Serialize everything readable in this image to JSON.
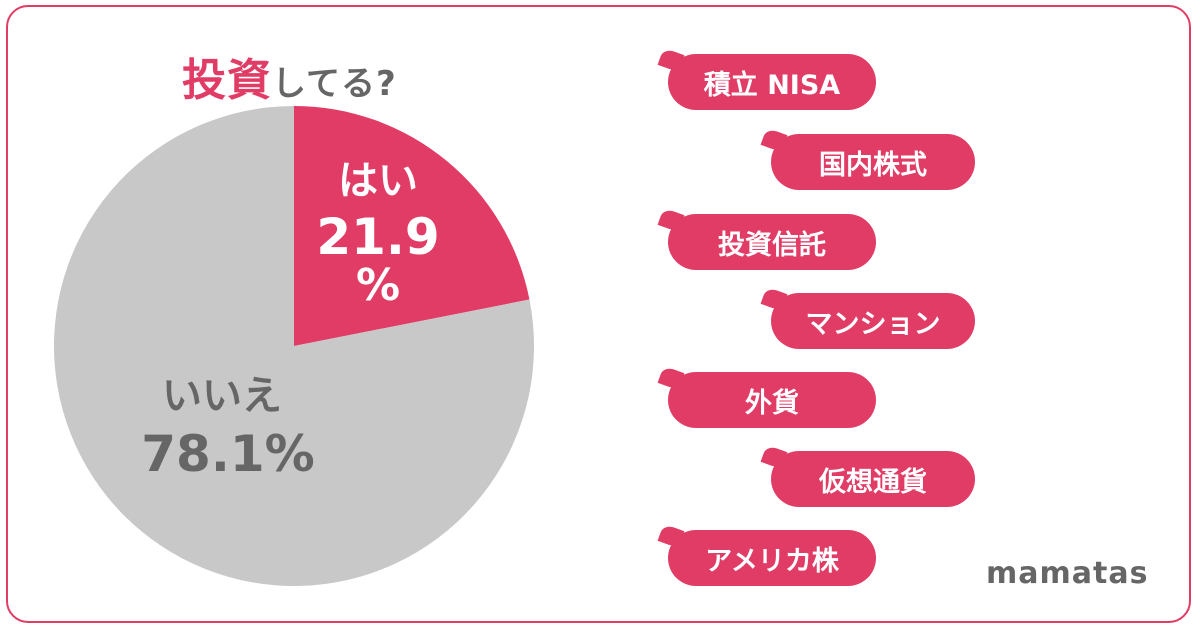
{
  "title": {
    "accent": "投資",
    "rest": "してる?"
  },
  "chart_data": {
    "type": "pie",
    "slices": [
      {
        "label": "はい",
        "value": 21.9,
        "display": "21.9",
        "unit": "%",
        "color": "#e03c66",
        "label_color": "#ffffff"
      },
      {
        "label": "いいえ",
        "value": 78.1,
        "display": "78.1%",
        "color": "#c8c8c8",
        "label_color": "#666666"
      }
    ]
  },
  "tags": [
    "積立 NISA",
    "国内株式",
    "投資信託",
    "マンション",
    "外貨",
    "仮想通貨",
    "アメリカ株"
  ],
  "brand": "mamatas",
  "colors": {
    "accent": "#e03c66",
    "gray": "#c8c8c8",
    "text_gray": "#666666"
  }
}
